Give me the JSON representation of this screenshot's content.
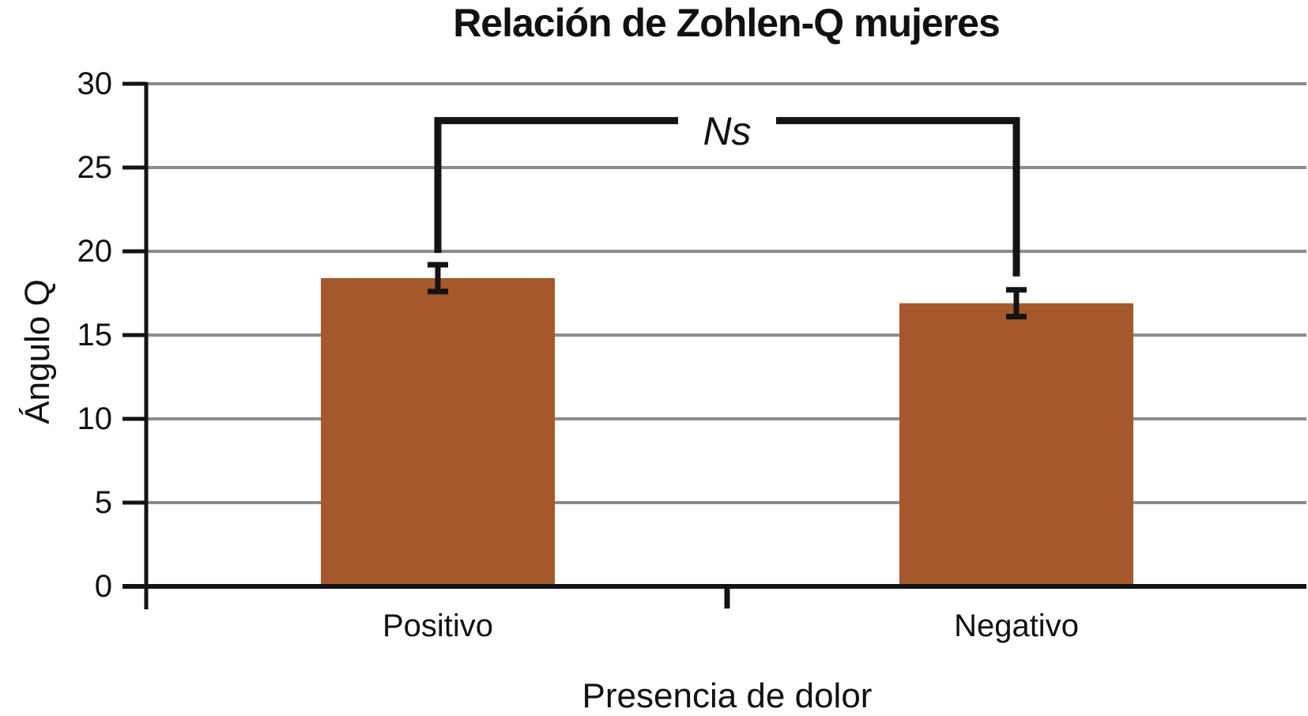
{
  "chart_data": {
    "type": "bar",
    "title": "Relación de Zohlen-Q mujeres",
    "xlabel": "Presencia de dolor",
    "ylabel": "Ángulo Q",
    "categories": [
      "Positivo",
      "Negativo"
    ],
    "values": [
      18.4,
      16.9
    ],
    "errors": [
      0.8,
      0.8
    ],
    "ylim": [
      0,
      30
    ],
    "yticks": [
      0,
      5,
      10,
      15,
      20,
      25,
      30
    ],
    "grid": true,
    "legend": "none",
    "annotation": {
      "label": "Ns",
      "type": "significance-bracket",
      "line_y": 27.8,
      "left_stop": 19.9,
      "right_stop": 18.5
    }
  },
  "colors": {
    "bar": "#a5582c",
    "grid": "#8c8c8c",
    "ink": "#131313",
    "background": "#ffffff"
  }
}
